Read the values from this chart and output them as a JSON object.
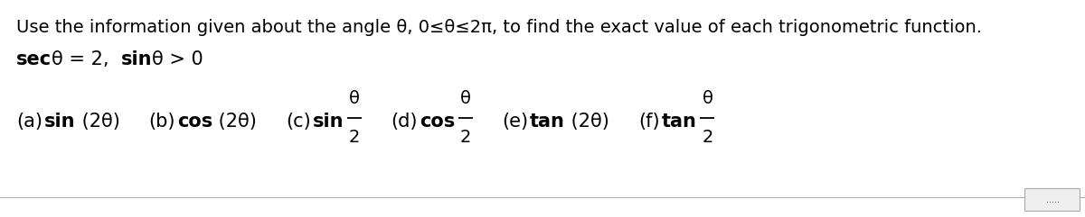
{
  "bg_color": "#ffffff",
  "line1": "Use the information given about the angle θ, 0≤θ≤2π, to find the exact value of each trigonometric function.",
  "line2_bold_parts": [
    "sec",
    "sin"
  ],
  "line2_normal_parts": [
    "θ = 2,  ",
    "θ > 0"
  ],
  "items": [
    {
      "label": "(a)",
      "func": "sin",
      "arg": " (2θ)",
      "has_fraction": false
    },
    {
      "label": "(b)",
      "func": "cos",
      "arg": " (2θ)",
      "has_fraction": false
    },
    {
      "label": "(c)",
      "func": "sin",
      "arg": "",
      "has_fraction": true,
      "frac_num": "θ",
      "frac_den": "2"
    },
    {
      "label": "(d)",
      "func": "cos",
      "arg": "",
      "has_fraction": true,
      "frac_num": "θ",
      "frac_den": "2"
    },
    {
      "label": "(e)",
      "func": "tan",
      "arg": " (2θ)",
      "has_fraction": false
    },
    {
      "label": "(f)",
      "func": "tan",
      "arg": "",
      "has_fraction": true,
      "frac_num": "θ",
      "frac_den": "2"
    }
  ],
  "scrollbar_dots": ".....",
  "line1_fontsize": 14,
  "line2_fontsize": 15,
  "items_fontsize": 15
}
